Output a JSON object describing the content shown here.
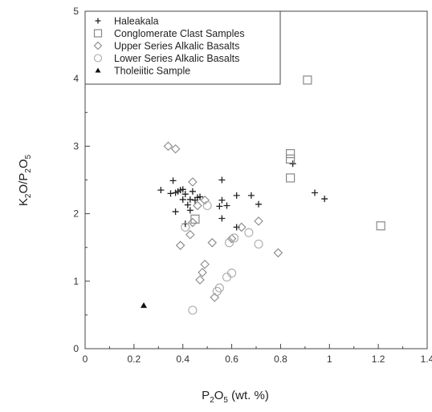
{
  "chart_data": {
    "type": "scatter",
    "title": "",
    "xlabel": {
      "parts": [
        {
          "t": "P",
          "sub": false
        },
        {
          "t": "2",
          "sub": true
        },
        {
          "t": "O",
          "sub": false
        },
        {
          "t": "5",
          "sub": true
        },
        {
          "t": " (wt. %)",
          "sub": false
        }
      ]
    },
    "ylabel": {
      "parts": [
        {
          "t": "K",
          "sub": false
        },
        {
          "t": "2",
          "sub": true
        },
        {
          "t": "O/P",
          "sub": false
        },
        {
          "t": "2",
          "sub": true
        },
        {
          "t": "O",
          "sub": false
        },
        {
          "t": "5",
          "sub": true
        }
      ]
    },
    "xlim": [
      0,
      1.4
    ],
    "ylim": [
      0,
      5
    ],
    "xticks": [
      "0",
      "0.2",
      "0.4",
      "0.6",
      "0.8",
      "1",
      "1.2",
      "1.4"
    ],
    "yticks": [
      "0",
      "1",
      "2",
      "3",
      "4",
      "5"
    ],
    "legend_position": "top-left",
    "series": [
      {
        "name": "Haleakala",
        "marker": "plus",
        "color": "#222222",
        "points": [
          [
            0.31,
            2.35
          ],
          [
            0.35,
            2.3
          ],
          [
            0.36,
            2.49
          ],
          [
            0.37,
            2.31
          ],
          [
            0.37,
            2.03
          ],
          [
            0.38,
            2.33
          ],
          [
            0.39,
            2.35
          ],
          [
            0.4,
            2.36
          ],
          [
            0.41,
            2.29
          ],
          [
            0.4,
            2.21
          ],
          [
            0.41,
            1.85
          ],
          [
            0.42,
            2.13
          ],
          [
            0.43,
            2.21
          ],
          [
            0.43,
            2.05
          ],
          [
            0.44,
            2.33
          ],
          [
            0.45,
            2.2
          ],
          [
            0.46,
            2.24
          ],
          [
            0.47,
            2.25
          ],
          [
            0.55,
            2.11
          ],
          [
            0.56,
            2.5
          ],
          [
            0.56,
            2.2
          ],
          [
            0.56,
            1.93
          ],
          [
            0.58,
            2.12
          ],
          [
            0.62,
            2.27
          ],
          [
            0.62,
            1.8
          ],
          [
            0.68,
            2.27
          ],
          [
            0.71,
            2.14
          ],
          [
            0.85,
            2.74
          ],
          [
            0.94,
            2.31
          ],
          [
            0.98,
            2.22
          ]
        ]
      },
      {
        "name": "Conglomerate Clast Samples",
        "marker": "square",
        "color": "#888888",
        "points": [
          [
            0.45,
            1.92
          ],
          [
            0.84,
            2.89
          ],
          [
            0.84,
            2.81
          ],
          [
            0.84,
            2.53
          ],
          [
            0.91,
            3.98
          ],
          [
            1.21,
            1.82
          ]
        ]
      },
      {
        "name": "Upper Series Alkalic Basalts",
        "marker": "diamond",
        "color": "#888888",
        "points": [
          [
            0.34,
            3.0
          ],
          [
            0.37,
            2.96
          ],
          [
            0.44,
            2.47
          ],
          [
            0.46,
            2.12
          ],
          [
            0.49,
            2.2
          ],
          [
            0.39,
            1.53
          ],
          [
            0.43,
            1.69
          ],
          [
            0.44,
            1.87
          ],
          [
            0.52,
            1.57
          ],
          [
            0.6,
            1.63
          ],
          [
            0.64,
            1.8
          ],
          [
            0.71,
            1.89
          ],
          [
            0.79,
            1.42
          ],
          [
            0.49,
            1.25
          ],
          [
            0.48,
            1.13
          ],
          [
            0.47,
            1.02
          ],
          [
            0.53,
            0.76
          ]
        ]
      },
      {
        "name": "Lower Series Alkalic Basalts",
        "marker": "circle",
        "color": "#aaaaaa",
        "points": [
          [
            0.5,
            2.12
          ],
          [
            0.41,
            1.8
          ],
          [
            0.59,
            1.57
          ],
          [
            0.61,
            1.64
          ],
          [
            0.67,
            1.72
          ],
          [
            0.71,
            1.55
          ],
          [
            0.6,
            1.12
          ],
          [
            0.58,
            1.06
          ],
          [
            0.55,
            0.9
          ],
          [
            0.54,
            0.85
          ],
          [
            0.44,
            0.57
          ]
        ]
      },
      {
        "name": "Tholeiitic Sample",
        "marker": "triangle",
        "color": "#111111",
        "points": [
          [
            0.24,
            0.64
          ]
        ]
      }
    ]
  }
}
